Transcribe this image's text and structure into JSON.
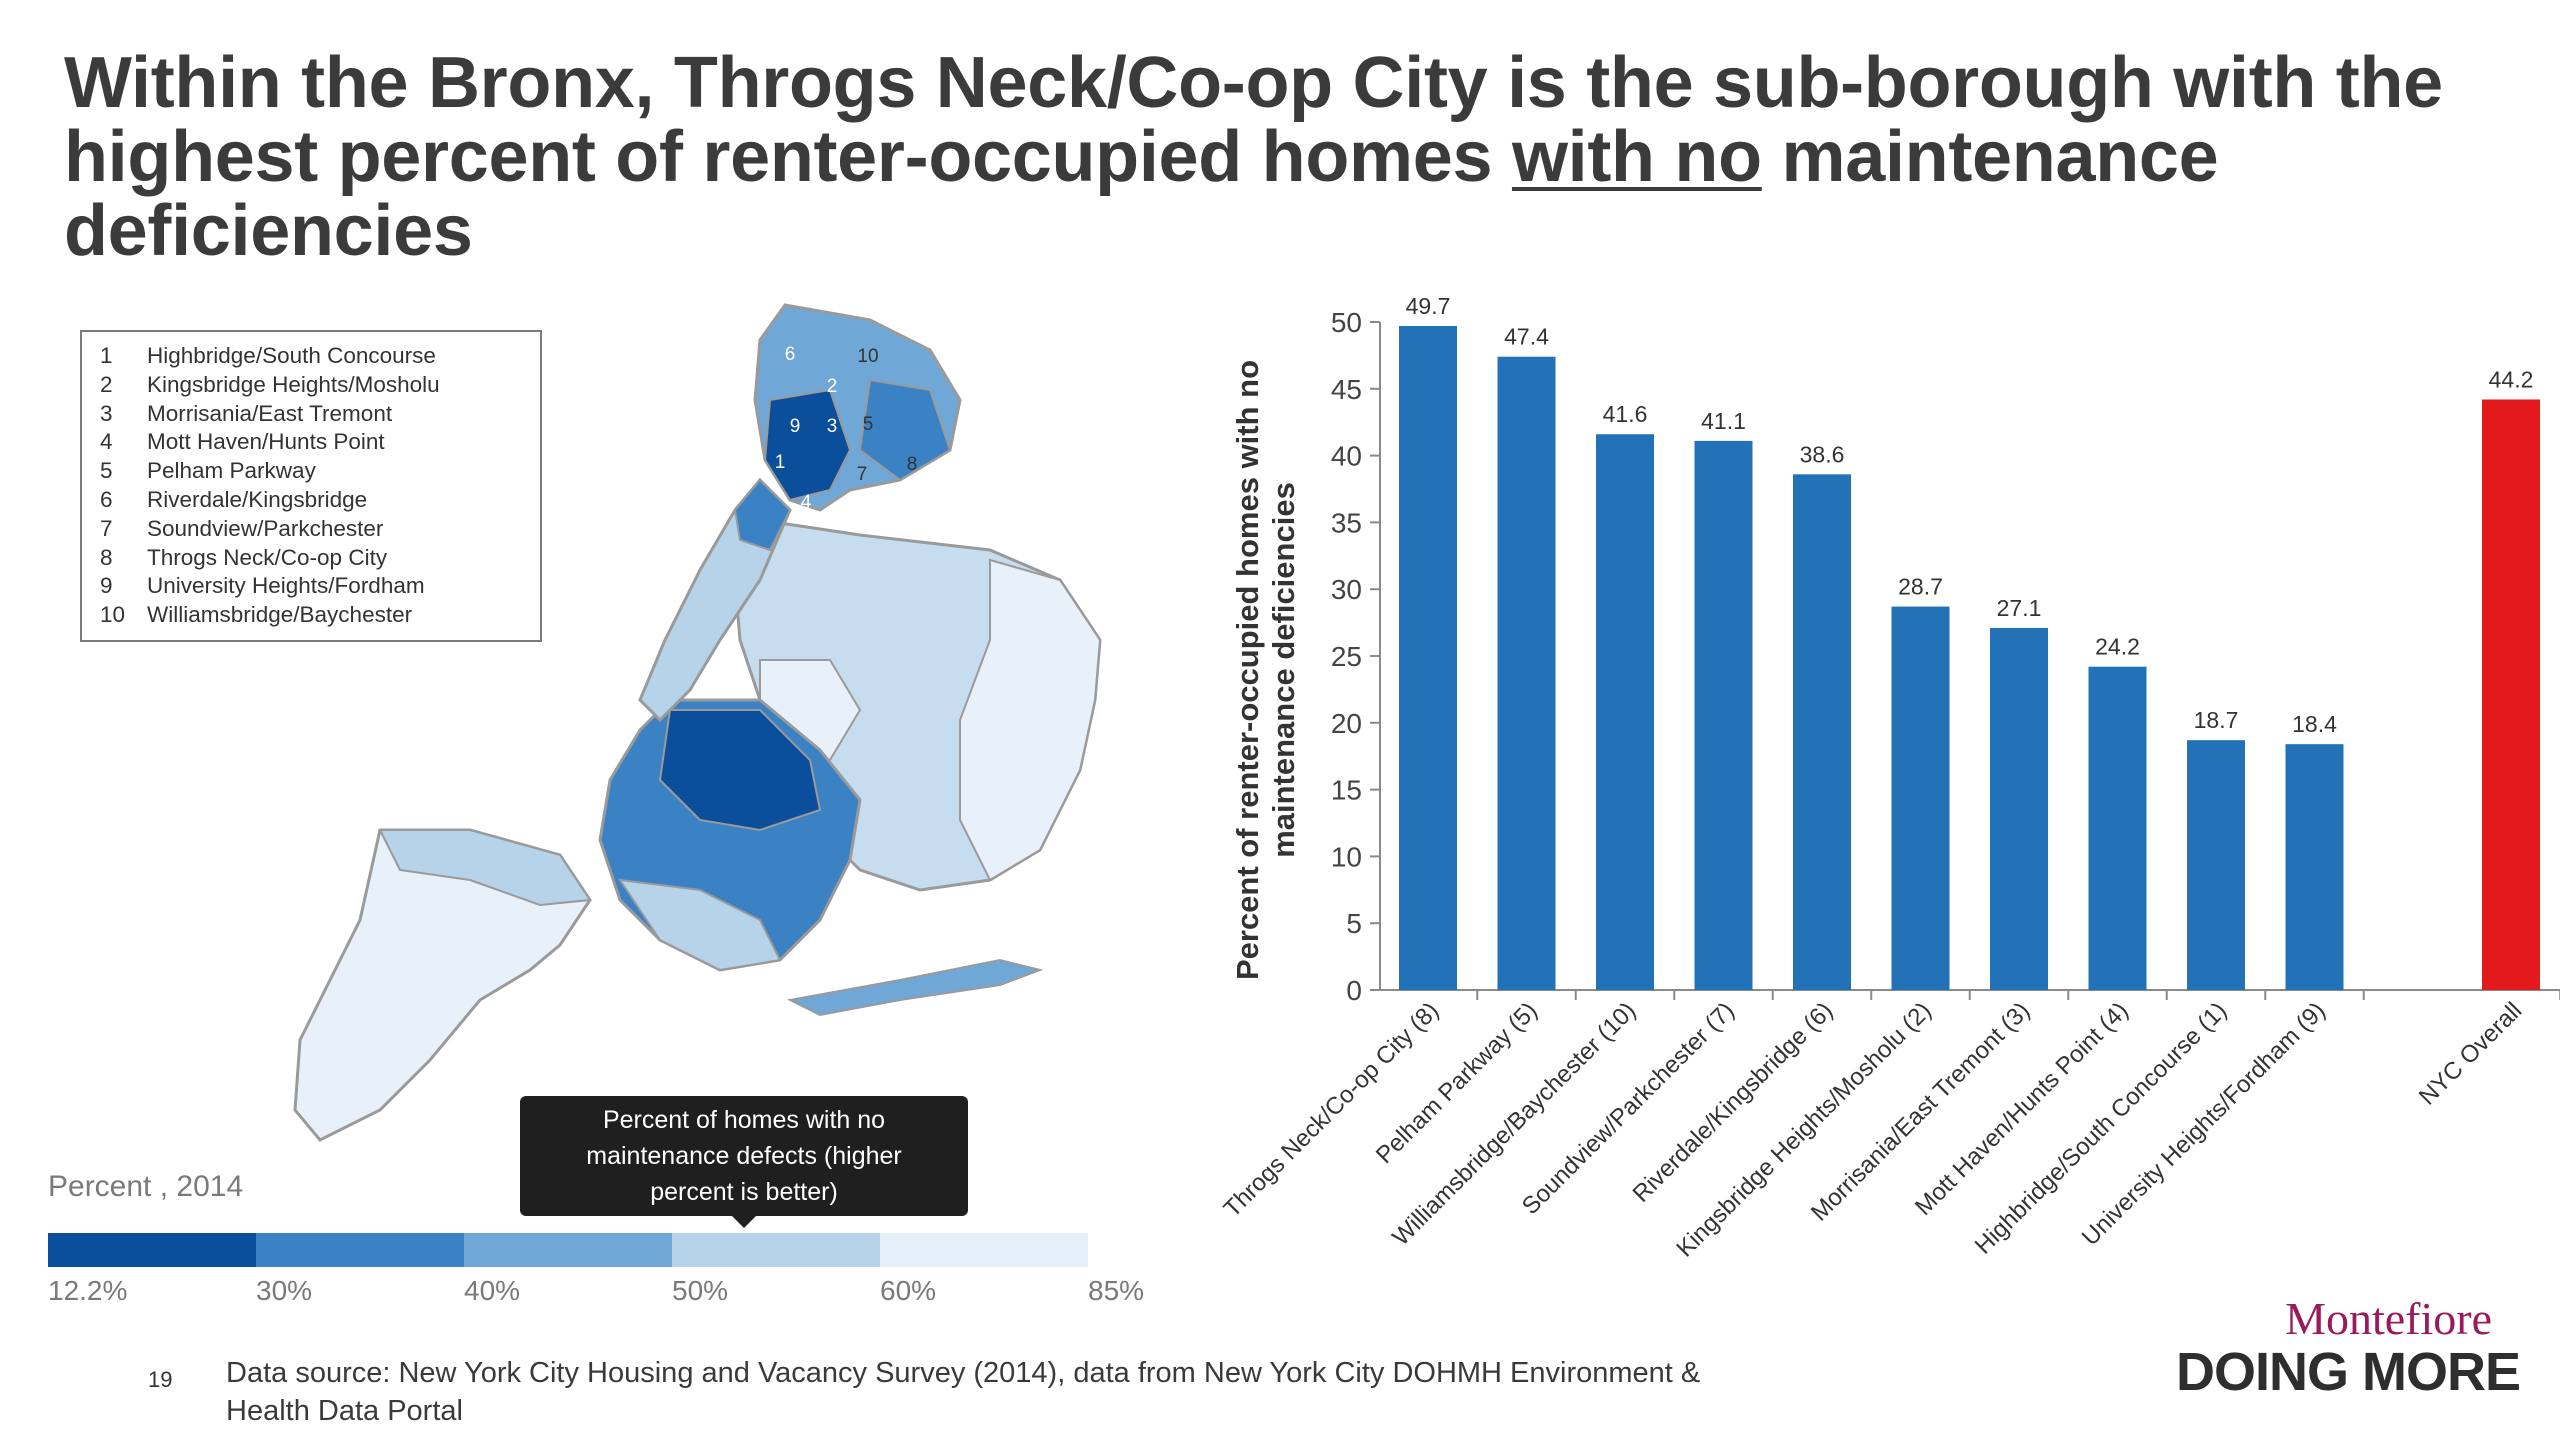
{
  "title": {
    "part1": "Within the Bronx, Throgs Neck/Co-op City is the sub-borough with the highest percent of renter-occupied homes ",
    "underline": "with no",
    "part2": " maintenance deficiencies"
  },
  "map": {
    "legend": [
      {
        "num": "1",
        "name": "Highbridge/South Concourse"
      },
      {
        "num": "2",
        "name": "Kingsbridge Heights/Mosholu"
      },
      {
        "num": "3",
        "name": "Morrisania/East Tremont"
      },
      {
        "num": "4",
        "name": "Mott Haven/Hunts Point"
      },
      {
        "num": "5",
        "name": "Pelham Parkway"
      },
      {
        "num": "6",
        "name": "Riverdale/Kingsbridge"
      },
      {
        "num": "7",
        "name": "Soundview/Parkchester"
      },
      {
        "num": "8",
        "name": "Throgs Neck/Co-op City"
      },
      {
        "num": "9",
        "name": "University Heights/Fordham"
      },
      {
        "num": "10",
        "name": "Williamsbridge/Baychester"
      }
    ],
    "region_labels": [
      "6",
      "10",
      "2",
      "9",
      "3",
      "5",
      "1",
      "7",
      "8",
      "4"
    ],
    "tooltip": [
      "Percent of homes with no",
      "maintenance defects (higher",
      "percent is better)"
    ],
    "scale_title": "Percent , 2014",
    "scale_colors": [
      "#0b4f9c",
      "#3a82c4",
      "#6fa8d6",
      "#b7d3ea",
      "#e5eff9"
    ],
    "scale_ticks": [
      "12.2%",
      "30%",
      "40%",
      "50%",
      "60%",
      "85%"
    ]
  },
  "chart_data": {
    "type": "bar",
    "ylabel": "Percent of renter-occupied homes with no maintenance deficiencies",
    "ylim": [
      0,
      50
    ],
    "yticks": [
      0,
      5,
      10,
      15,
      20,
      25,
      30,
      35,
      40,
      45,
      50
    ],
    "categories": [
      "Throgs Neck/Co-op City (8)",
      "Pelham Parkway (5)",
      "Williamsbridge/Baychester (10)",
      "Soundview/Parkchester (7)",
      "Riverdale/Kingsbridge (6)",
      "Kingsbridge Heights/Mosholu (2)",
      "Morrisania/East Tremont (3)",
      "Mott Haven/Hunts Point (4)",
      "Highbridge/South Concourse (1)",
      "University Heights/Fordham (9)",
      "NYC Overall"
    ],
    "values": [
      49.7,
      47.4,
      41.6,
      41.1,
      38.6,
      28.7,
      27.1,
      24.2,
      18.7,
      18.4,
      44.2
    ],
    "value_labels": [
      "49.7",
      "47.4",
      "41.6",
      "41.1",
      "38.6",
      "28.7",
      "27.1",
      "24.2",
      "18.7",
      "18.4",
      "44.2"
    ],
    "bar_color": "#2372b8",
    "highlight_color": "#e31a1c",
    "highlight_index": 10,
    "grid": false,
    "legend": "none"
  },
  "footer": {
    "page_number": "19",
    "source": "Data source: New York City Housing and Vacancy Survey (2014), data from New York City DOHMH Environment & Health Data Portal"
  },
  "logo": {
    "top": "Montefiore",
    "bottom": "DOING MORE"
  }
}
